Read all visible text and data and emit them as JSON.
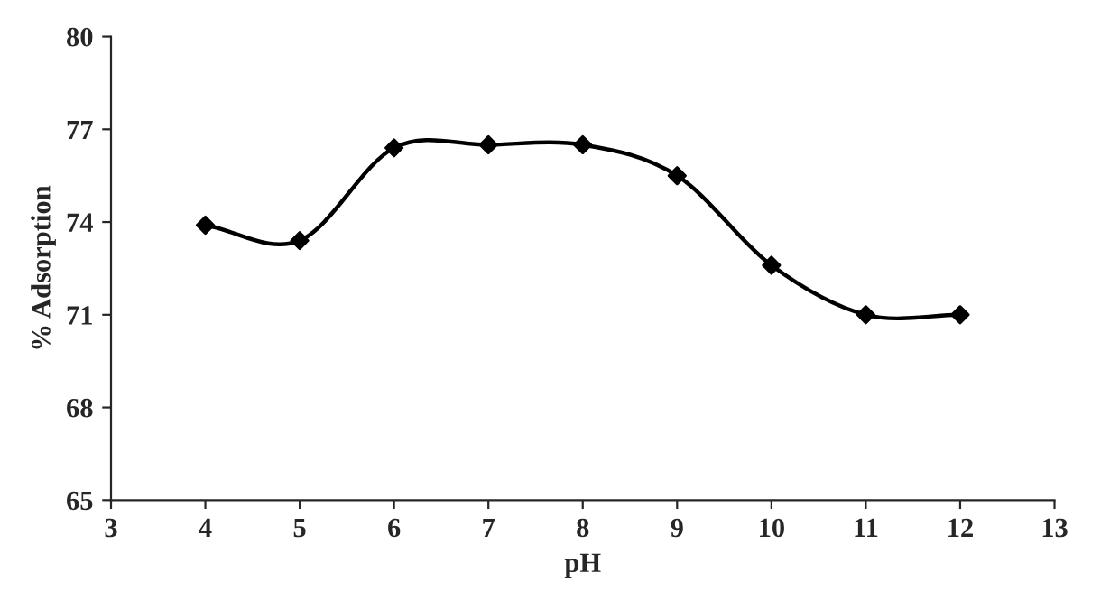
{
  "chart_data": {
    "type": "line",
    "xlabel": "pH",
    "ylabel": "% Adsorption",
    "x": [
      4,
      5,
      6,
      7,
      8,
      9,
      10,
      11,
      12
    ],
    "series": [
      {
        "color": "#000000",
        "values": [
          73.9,
          73.4,
          76.4,
          76.5,
          76.5,
          75.5,
          72.6,
          71.0,
          71.0
        ]
      }
    ],
    "xlim": [
      3,
      13
    ],
    "xticks": [
      3,
      4,
      5,
      6,
      7,
      8,
      9,
      10,
      11,
      12,
      13
    ],
    "ylim": [
      65,
      80
    ],
    "yticks": [
      65,
      68,
      71,
      74,
      77,
      80
    ],
    "grid": false,
    "legend": false,
    "marker": "diamond",
    "line_style": "solid"
  }
}
